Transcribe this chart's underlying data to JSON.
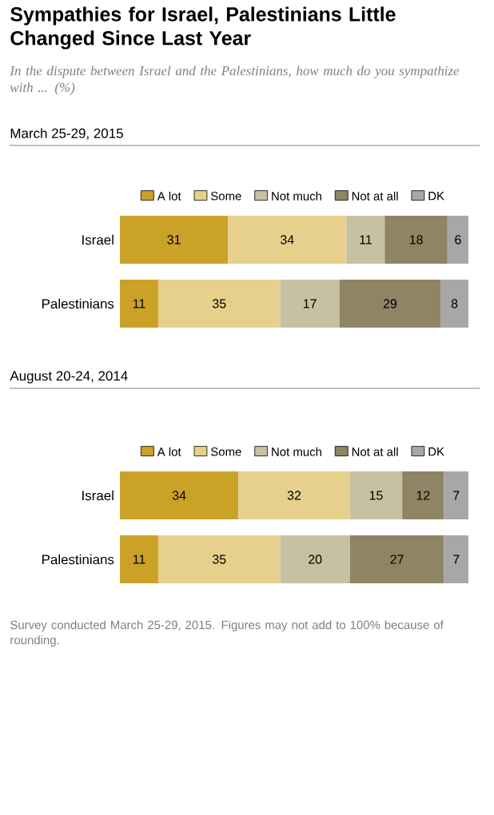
{
  "chart_data": [
    {
      "type": "bar",
      "orientation": "horizontal",
      "stacked": true,
      "data_labels": true,
      "legend": "top",
      "tick_labels": "y",
      "title": "Sympathies for Israel, Palestinians Little Changed Since Last Year",
      "subtitle": "In the dispute between Israel and the Palestinians, how much do you sympathize with ... (%)",
      "annotations": [
        "March 25-29, 2015"
      ],
      "categories": [
        "Israel",
        "Palestinians"
      ],
      "xlim": [
        0,
        100
      ],
      "series": [
        {
          "name": "A lot",
          "color": "#c9a227",
          "values": [
            31,
            11
          ]
        },
        {
          "name": "Some",
          "color": "#e6d08c",
          "values": [
            34,
            35
          ]
        },
        {
          "name": "Not much",
          "color": "#c8c0a2",
          "values": [
            11,
            17
          ]
        },
        {
          "name": "Not at all",
          "color": "#8f8463",
          "values": [
            18,
            29
          ]
        },
        {
          "name": "DK",
          "color": "#a7a7a7",
          "values": [
            6,
            8
          ]
        }
      ]
    },
    {
      "type": "bar",
      "orientation": "horizontal",
      "stacked": true,
      "data_labels": true,
      "legend": "top",
      "tick_labels": "y",
      "title": "August 20-24, 2014",
      "annotations": [
        "Survey conducted March 25-29, 2015. Figures may not add to 100% because of rounding."
      ],
      "categories": [
        "Israel",
        "Palestinians"
      ],
      "xlim": [
        0,
        100
      ],
      "series": [
        {
          "name": "A lot",
          "color": "#c9a227",
          "values": [
            34,
            11
          ]
        },
        {
          "name": "Some",
          "color": "#e6d08c",
          "values": [
            32,
            35
          ]
        },
        {
          "name": "Not much",
          "color": "#c8c0a2",
          "values": [
            15,
            20
          ]
        },
        {
          "name": "Not at all",
          "color": "#8f8463",
          "values": [
            12,
            27
          ]
        },
        {
          "name": "DK",
          "color": "#a7a7a7",
          "values": [
            7,
            7
          ]
        }
      ]
    }
  ]
}
